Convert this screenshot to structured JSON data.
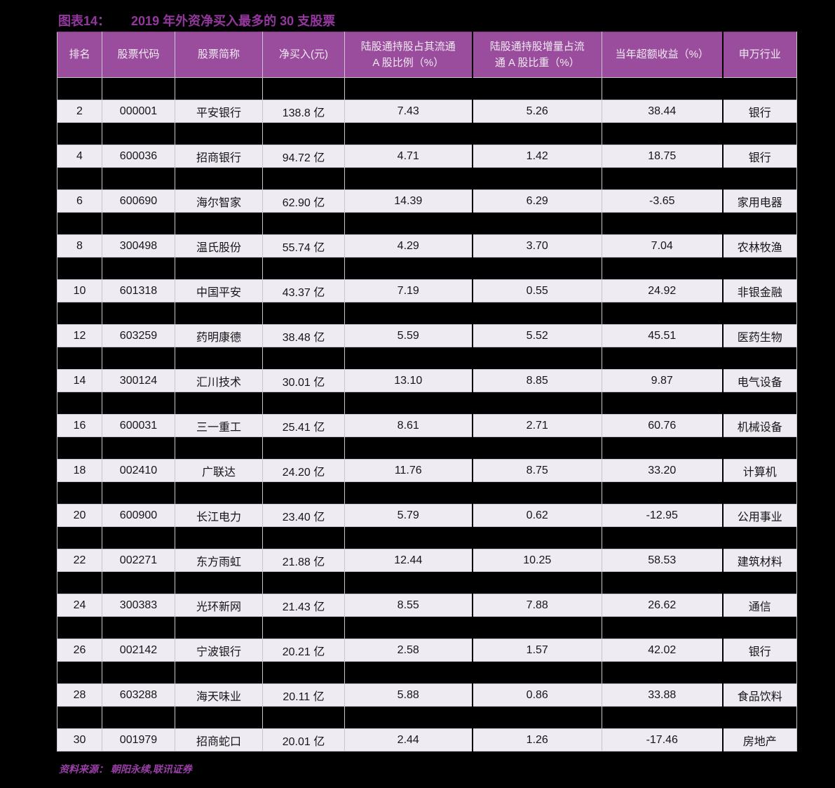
{
  "figure": {
    "label": "图表14：",
    "title": "2019 年外资净买入最多的 30 支股票",
    "title_color": "#9637A0"
  },
  "table": {
    "header_bg": "#9A4D9D",
    "header_text_color": "#F2EAF4",
    "row_bg": "#EFEBF3",
    "grid_color": "#C9C4CF",
    "redacted_row_color": "#000000",
    "columns": [
      "排名",
      "股票代码",
      "股票简称",
      "净买入(元)",
      "陆股通持股占其流通\nA 股比例（%）",
      "陆股通持股增量占流\n通 A 股比重（%）",
      "当年超额收益（%）",
      "申万行业"
    ],
    "rows": [
      {
        "redacted": true
      },
      {
        "redacted": false,
        "rank": "2",
        "code": "000001",
        "name": "平安银行",
        "net_buy": "138.8 亿",
        "holding_pct": "7.43",
        "increment_pct": "5.26",
        "excess_return": "38.44",
        "industry": "银行"
      },
      {
        "redacted": true
      },
      {
        "redacted": false,
        "rank": "4",
        "code": "600036",
        "name": "招商银行",
        "net_buy": "94.72 亿",
        "holding_pct": "4.71",
        "increment_pct": "1.42",
        "excess_return": "18.75",
        "industry": "银行"
      },
      {
        "redacted": true
      },
      {
        "redacted": false,
        "rank": "6",
        "code": "600690",
        "name": "海尔智家",
        "net_buy": "62.90 亿",
        "holding_pct": "14.39",
        "increment_pct": "6.29",
        "excess_return": "-3.65",
        "industry": "家用电器"
      },
      {
        "redacted": true
      },
      {
        "redacted": false,
        "rank": "8",
        "code": "300498",
        "name": "温氏股份",
        "net_buy": "55.74 亿",
        "holding_pct": "4.29",
        "increment_pct": "3.70",
        "excess_return": "7.04",
        "industry": "农林牧渔"
      },
      {
        "redacted": true
      },
      {
        "redacted": false,
        "rank": "10",
        "code": "601318",
        "name": "中国平安",
        "net_buy": "43.37 亿",
        "holding_pct": "7.19",
        "increment_pct": "0.55",
        "excess_return": "24.92",
        "industry": "非银金融"
      },
      {
        "redacted": true
      },
      {
        "redacted": false,
        "rank": "12",
        "code": "603259",
        "name": "药明康德",
        "net_buy": "38.48 亿",
        "holding_pct": "5.59",
        "increment_pct": "5.52",
        "excess_return": "45.51",
        "industry": "医药生物"
      },
      {
        "redacted": true
      },
      {
        "redacted": false,
        "rank": "14",
        "code": "300124",
        "name": "汇川技术",
        "net_buy": "30.01 亿",
        "holding_pct": "13.10",
        "increment_pct": "8.85",
        "excess_return": "9.87",
        "industry": "电气设备"
      },
      {
        "redacted": true
      },
      {
        "redacted": false,
        "rank": "16",
        "code": "600031",
        "name": "三一重工",
        "net_buy": "25.41 亿",
        "holding_pct": "8.61",
        "increment_pct": "2.71",
        "excess_return": "60.76",
        "industry": "机械设备"
      },
      {
        "redacted": true
      },
      {
        "redacted": false,
        "rank": "18",
        "code": "002410",
        "name": "广联达",
        "net_buy": "24.20 亿",
        "holding_pct": "11.76",
        "increment_pct": "8.75",
        "excess_return": "33.20",
        "industry": "计算机"
      },
      {
        "redacted": true
      },
      {
        "redacted": false,
        "rank": "20",
        "code": "600900",
        "name": "长江电力",
        "net_buy": "23.40 亿",
        "holding_pct": "5.79",
        "increment_pct": "0.62",
        "excess_return": "-12.95",
        "industry": "公用事业"
      },
      {
        "redacted": true
      },
      {
        "redacted": false,
        "rank": "22",
        "code": "002271",
        "name": "东方雨虹",
        "net_buy": "21.88 亿",
        "holding_pct": "12.44",
        "increment_pct": "10.25",
        "excess_return": "58.53",
        "industry": "建筑材料"
      },
      {
        "redacted": true
      },
      {
        "redacted": false,
        "rank": "24",
        "code": "300383",
        "name": "光环新网",
        "net_buy": "21.43 亿",
        "holding_pct": "8.55",
        "increment_pct": "7.88",
        "excess_return": "26.62",
        "industry": "通信"
      },
      {
        "redacted": true
      },
      {
        "redacted": false,
        "rank": "26",
        "code": "002142",
        "name": "宁波银行",
        "net_buy": "20.21 亿",
        "holding_pct": "2.58",
        "increment_pct": "1.57",
        "excess_return": "42.02",
        "industry": "银行"
      },
      {
        "redacted": true
      },
      {
        "redacted": false,
        "rank": "28",
        "code": "603288",
        "name": "海天味业",
        "net_buy": "20.11 亿",
        "holding_pct": "5.88",
        "increment_pct": "0.86",
        "excess_return": "33.88",
        "industry": "食品饮料"
      },
      {
        "redacted": true
      },
      {
        "redacted": false,
        "rank": "30",
        "code": "001979",
        "name": "招商蛇口",
        "net_buy": "20.01 亿",
        "holding_pct": "2.44",
        "increment_pct": "1.26",
        "excess_return": "-17.46",
        "industry": "房地产"
      }
    ]
  },
  "footer": {
    "source": "资料来源： 朝阳永续,联讯证券",
    "color": "#9A3FA8"
  }
}
